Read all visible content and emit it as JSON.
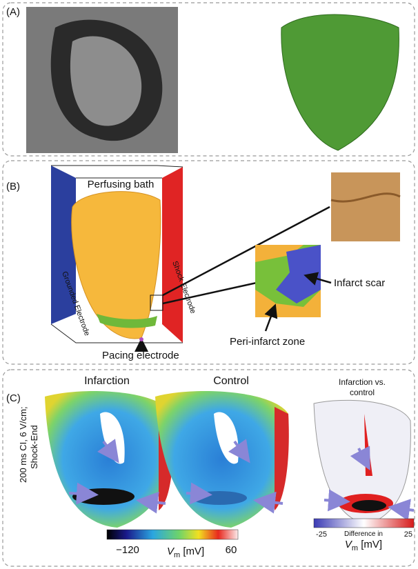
{
  "panel_a": {
    "label": "(A)"
  },
  "panel_b": {
    "label": "(B)",
    "bath": "Perfusing bath",
    "left_wall": "Grounded Electrode",
    "right_wall": "Shock Electrode",
    "pacing": "Pacing electrode",
    "peri_infarct": "Peri-infarct zone",
    "scar": "Infarct scar"
  },
  "panel_c": {
    "label": "(C)",
    "side_label": [
      "200 ms CI, 6 V/cm;",
      "Shock-End"
    ],
    "titles": [
      "Infarction",
      "Control"
    ],
    "diff_title": [
      "Infarction vs.",
      "control"
    ],
    "colorbar_vm": {
      "min": "−120",
      "max": "60",
      "symbol": "V",
      "subscript": "m",
      "unit": " [mV]"
    },
    "colorbar_diff": {
      "min": "-25",
      "max": "25",
      "caption": "Difference in",
      "symbol": "V",
      "subscript": "m",
      "unit": " [mV]"
    }
  }
}
